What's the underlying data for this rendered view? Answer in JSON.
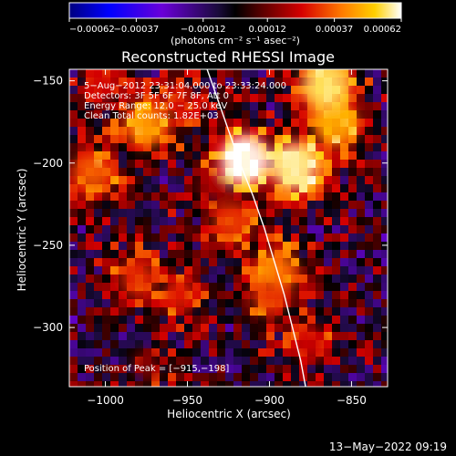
{
  "chart_data": {
    "type": "heatmap",
    "title": "Reconstructed RHESSI Image",
    "xlabel": "Heliocentric X (arcsec)",
    "ylabel": "Heliocentric Y (arcsec)",
    "xlim": [
      -1022,
      -828
    ],
    "ylim": [
      -336,
      -143
    ],
    "x_ticks": [
      {
        "value": -1000,
        "label": "−1000"
      },
      {
        "value": -950,
        "label": "−950"
      },
      {
        "value": -900,
        "label": "−900"
      },
      {
        "value": -850,
        "label": "−850"
      }
    ],
    "y_ticks": [
      {
        "value": -150,
        "label": "−150"
      },
      {
        "value": -200,
        "label": "−200"
      },
      {
        "value": -250,
        "label": "−250"
      },
      {
        "value": -300,
        "label": "−300"
      }
    ],
    "colorbar": {
      "range": [
        -0.00062,
        0.00062
      ],
      "ticks": [
        {
          "value": -0.00062,
          "label": "−0.00062"
        },
        {
          "value": -0.00037,
          "label": "−0.00037"
        },
        {
          "value": -0.00012,
          "label": "−0.00012"
        },
        {
          "value": 0.00012,
          "label": "0.00012"
        },
        {
          "value": 0.00037,
          "label": "0.00037"
        },
        {
          "value": 0.00062,
          "label": "0.00062"
        }
      ],
      "unit_label": "(photons cm⁻² s⁻¹ asec⁻²)"
    },
    "annotations": [
      "5−Aug−2012 23:31:04.000 to 23:33:24.000",
      "Detectors: 3F 5F 6F 7F 8F, Att 0",
      "Energy Range: 12.0 − 25.0 keV",
      "Clean     Total counts: 1.82E+03"
    ],
    "peak_text": "Position of Peak = [−915,−198]",
    "timestamp": "13−May−2022 09:19",
    "limb_line": [
      {
        "x": -938,
        "y": -143
      },
      {
        "x": -932,
        "y": -160
      },
      {
        "x": -925,
        "y": -180
      },
      {
        "x": -918,
        "y": -200
      },
      {
        "x": -910,
        "y": -220
      },
      {
        "x": -903,
        "y": -240
      },
      {
        "x": -897,
        "y": -260
      },
      {
        "x": -891,
        "y": -280
      },
      {
        "x": -886,
        "y": -300
      },
      {
        "x": -881,
        "y": -320
      },
      {
        "x": -878,
        "y": -336
      }
    ],
    "highlight_points": [
      {
        "x": -915,
        "y": -198,
        "value": 0.00062
      },
      {
        "x": -885,
        "y": -202,
        "value": 0.00058
      },
      {
        "x": -866,
        "y": -152,
        "value": 0.00056
      },
      {
        "x": -860,
        "y": -176,
        "value": 0.00047
      },
      {
        "x": -975,
        "y": -177,
        "value": 0.00044
      },
      {
        "x": -1008,
        "y": -206,
        "value": 0.00036
      },
      {
        "x": -923,
        "y": -236,
        "value": 0.00032
      },
      {
        "x": -895,
        "y": -266,
        "value": 0.00039
      },
      {
        "x": -900,
        "y": -282,
        "value": 0.00031
      },
      {
        "x": -955,
        "y": -280,
        "value": 0.00028
      },
      {
        "x": -980,
        "y": -270,
        "value": 0.0003
      },
      {
        "x": -875,
        "y": -310,
        "value": 0.00024
      },
      {
        "x": -1002,
        "y": -155,
        "value": 0.00024
      },
      {
        "x": -955,
        "y": -163,
        "value": 0.00026
      },
      {
        "x": -975,
        "y": -323,
        "value": 0.00015
      },
      {
        "x": -933,
        "y": -216,
        "value": 0.00018
      }
    ]
  }
}
